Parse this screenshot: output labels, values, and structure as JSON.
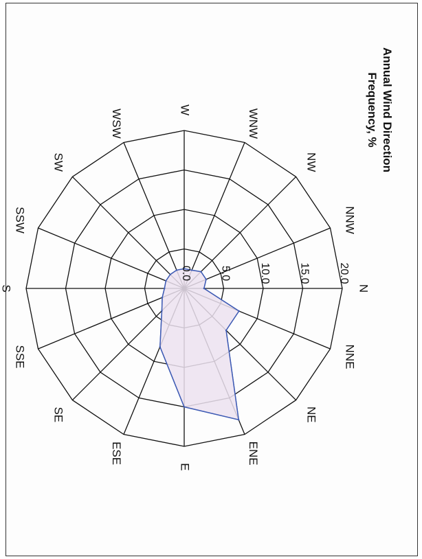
{
  "chart_data": {
    "type": "radar",
    "title": "Annual Wind Direction",
    "subtitle": "Frequency, %",
    "directions": [
      "N",
      "NNE",
      "NE",
      "ENE",
      "E",
      "ESE",
      "SE",
      "SSE",
      "S",
      "SSW",
      "SW",
      "WSW",
      "W",
      "WNW",
      "NW",
      "NNW"
    ],
    "ring_values": [
      0,
      5,
      10,
      15,
      20
    ],
    "ring_labels": [
      "0.0",
      "5.0",
      "10.0",
      "15.0",
      "20.0"
    ],
    "r_max": 20,
    "series": [
      {
        "values": [
          2.5,
          7.5,
          7.5,
          18.0,
          15.0,
          8.0,
          4.0,
          3.0,
          2.5,
          2.5,
          2.5,
          2.5,
          2.5,
          2.5,
          3.0,
          3.0
        ],
        "fill": "#ece2f0",
        "stroke": "#3e5bb4"
      }
    ],
    "grid": true,
    "orientation": "rotated-90-clockwise"
  }
}
